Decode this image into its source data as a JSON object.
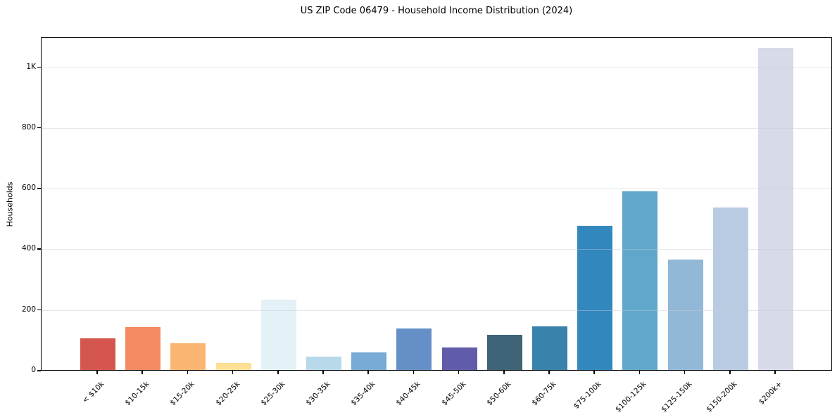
{
  "chart_data": {
    "type": "bar",
    "title": "US ZIP Code 06479 - Household Income Distribution (2024)",
    "xlabel": "",
    "ylabel": "Households",
    "categories": [
      "< $10k",
      "$10-15k",
      "$15-20k",
      "$20-25k",
      "$25-30k",
      "$30-35k",
      "$35-40k",
      "$40-45k",
      "$45-50k",
      "$50-60k",
      "$60-75k",
      "$75-100k",
      "$100-125k",
      "$125-150k",
      "$150-200k",
      "$200k+"
    ],
    "values": [
      105,
      141,
      89,
      23,
      231,
      45,
      58,
      136,
      74,
      117,
      143,
      476,
      588,
      364,
      536,
      1063
    ],
    "bar_colors": [
      "#d4564e",
      "#f58a62",
      "#fbb572",
      "#fce096",
      "#e4f1f6",
      "#b7d9ea",
      "#77aad4",
      "#6590c7",
      "#615ca9",
      "#3e6377",
      "#3882ab",
      "#3287bd",
      "#5fa7cb",
      "#92b8d8",
      "#b8cbe2",
      "#d7dae8"
    ],
    "ylim": [
      0,
      1099
    ],
    "yticks": [
      {
        "value": 0,
        "label": "0"
      },
      {
        "value": 200,
        "label": "200"
      },
      {
        "value": 400,
        "label": "400"
      },
      {
        "value": 600,
        "label": "600"
      },
      {
        "value": 800,
        "label": "800"
      },
      {
        "value": 1000,
        "label": "1K"
      }
    ],
    "grid": "horizontal",
    "legend": "none",
    "colors": {
      "background": "#ffffff",
      "spine": "#000000",
      "gridline": "rgba(200,202,210,0.45)",
      "text": "#000000"
    }
  }
}
